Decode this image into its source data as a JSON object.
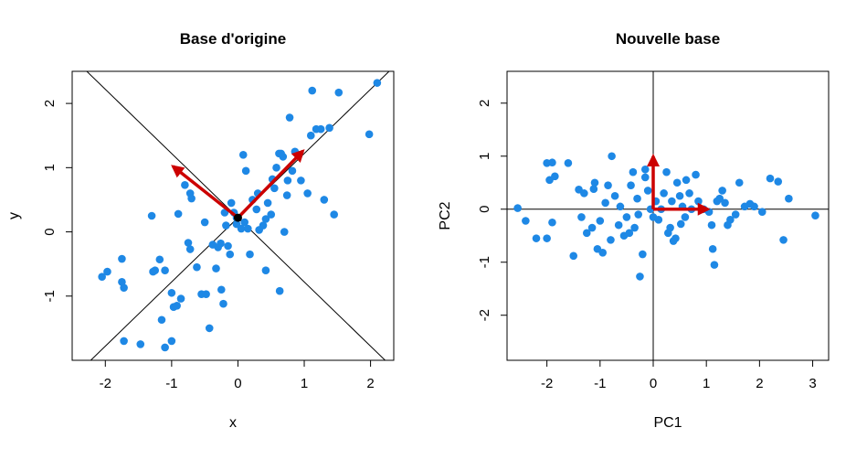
{
  "chart_data": [
    {
      "type": "scatter",
      "title": "Base d'origine",
      "xlabel": "x",
      "ylabel": "y",
      "xlim": [
        -2.5,
        2.35
      ],
      "ylim": [
        -2.0,
        2.5
      ],
      "xticks": [
        "-2",
        "-1",
        "0",
        "1",
        "2"
      ],
      "yticks": [
        "-1",
        "0",
        "1",
        "2"
      ],
      "xtick_values": [
        -2,
        -1,
        0,
        1,
        2
      ],
      "ytick_values": [
        -1,
        0,
        1,
        2
      ],
      "point_color": "#1E88E5",
      "arrow_color": "#CC0000",
      "origin_point": [
        0.0,
        0.22
      ],
      "lines": [
        {
          "slope": 1.0,
          "intercept": 0.22
        },
        {
          "slope": -1.0,
          "intercept": 0.22
        }
      ],
      "arrows": [
        {
          "from": [
            0.0,
            0.22
          ],
          "to": [
            -0.98,
            1.02
          ]
        },
        {
          "from": [
            0.0,
            0.22
          ],
          "to": [
            0.98,
            1.26
          ]
        }
      ],
      "points": [
        [
          -2.05,
          -0.7
        ],
        [
          -1.97,
          -0.62
        ],
        [
          -1.75,
          -0.42
        ],
        [
          -1.75,
          -0.78
        ],
        [
          -1.72,
          -0.87
        ],
        [
          -1.72,
          -1.7
        ],
        [
          -1.47,
          -1.75
        ],
        [
          -1.3,
          0.25
        ],
        [
          -1.28,
          -0.62
        ],
        [
          -1.25,
          -0.6
        ],
        [
          -1.18,
          -0.43
        ],
        [
          -1.1,
          -0.6
        ],
        [
          -1.15,
          -1.37
        ],
        [
          -1.1,
          -1.8
        ],
        [
          -1.0,
          -1.7
        ],
        [
          -0.97,
          -1.17
        ],
        [
          -1.0,
          -0.95
        ],
        [
          -0.92,
          -1.15
        ],
        [
          -0.86,
          -1.04
        ],
        [
          -0.9,
          0.28
        ],
        [
          -0.8,
          0.73
        ],
        [
          -0.72,
          0.6
        ],
        [
          -0.7,
          0.52
        ],
        [
          -0.75,
          -0.17
        ],
        [
          -0.72,
          -0.27
        ],
        [
          -0.62,
          -0.55
        ],
        [
          -0.55,
          -0.97
        ],
        [
          -0.48,
          -0.97
        ],
        [
          -0.43,
          -1.5
        ],
        [
          -0.38,
          -0.2
        ],
        [
          -0.33,
          -0.57
        ],
        [
          -0.3,
          -0.24
        ],
        [
          -0.26,
          -0.18
        ],
        [
          -0.25,
          -0.9
        ],
        [
          -0.22,
          -1.12
        ],
        [
          -0.18,
          0.1
        ],
        [
          -0.15,
          -0.22
        ],
        [
          -0.12,
          -0.35
        ],
        [
          -0.1,
          0.45
        ],
        [
          -0.06,
          0.3
        ],
        [
          -0.02,
          0.12
        ],
        [
          0.05,
          0.05
        ],
        [
          0.1,
          0.15
        ],
        [
          0.12,
          0.95
        ],
        [
          0.08,
          1.2
        ],
        [
          0.18,
          -0.35
        ],
        [
          0.22,
          0.5
        ],
        [
          0.28,
          0.35
        ],
        [
          0.32,
          0.03
        ],
        [
          0.38,
          0.1
        ],
        [
          0.42,
          0.2
        ],
        [
          0.45,
          0.45
        ],
        [
          0.5,
          0.27
        ],
        [
          0.52,
          0.82
        ],
        [
          0.55,
          0.68
        ],
        [
          0.58,
          1.0
        ],
        [
          0.62,
          1.22
        ],
        [
          0.65,
          1.22
        ],
        [
          0.68,
          1.17
        ],
        [
          0.7,
          0.0
        ],
        [
          0.74,
          0.57
        ],
        [
          0.75,
          0.8
        ],
        [
          0.78,
          1.78
        ],
        [
          0.82,
          0.95
        ],
        [
          0.86,
          1.25
        ],
        [
          0.92,
          1.2
        ],
        [
          0.95,
          0.8
        ],
        [
          1.05,
          0.6
        ],
        [
          1.1,
          1.5
        ],
        [
          1.12,
          2.2
        ],
        [
          1.18,
          1.6
        ],
        [
          1.25,
          1.6
        ],
        [
          1.3,
          0.5
        ],
        [
          1.38,
          1.62
        ],
        [
          1.45,
          0.27
        ],
        [
          1.52,
          2.17
        ],
        [
          1.98,
          1.52
        ],
        [
          2.1,
          2.32
        ],
        [
          0.63,
          -0.92
        ],
        [
          0.42,
          -0.6
        ],
        [
          -0.02,
          0.22
        ],
        [
          0.15,
          0.05
        ],
        [
          -0.2,
          0.3
        ],
        [
          0.3,
          0.6
        ],
        [
          -0.5,
          0.15
        ]
      ]
    },
    {
      "type": "scatter",
      "title": "Nouvelle base",
      "xlabel": "PC1",
      "ylabel": "PC2",
      "xlim": [
        -2.75,
        3.3
      ],
      "ylim": [
        -2.85,
        2.6
      ],
      "xticks": [
        "-2",
        "-1",
        "0",
        "1",
        "2",
        "3"
      ],
      "yticks": [
        "-2",
        "-1",
        "0",
        "1",
        "2"
      ],
      "xtick_values": [
        -2,
        -1,
        0,
        1,
        2,
        3
      ],
      "ytick_values": [
        -2,
        -1,
        0,
        1,
        2
      ],
      "point_color": "#1E88E5",
      "arrow_color": "#CC0000",
      "lines": [
        {
          "vertical": 0
        },
        {
          "horizontal": 0
        }
      ],
      "arrows": [
        {
          "from": [
            0,
            0
          ],
          "to": [
            0,
            1.0
          ]
        },
        {
          "from": [
            0,
            0
          ],
          "to": [
            1.03,
            0
          ]
        }
      ],
      "points": [
        [
          -2.55,
          0.02
        ],
        [
          -2.4,
          -0.22
        ],
        [
          -2.2,
          -0.55
        ],
        [
          -2.0,
          -0.55
        ],
        [
          -2.0,
          0.87
        ],
        [
          -1.9,
          0.88
        ],
        [
          -1.85,
          0.62
        ],
        [
          -1.95,
          0.55
        ],
        [
          -1.9,
          -0.25
        ],
        [
          -1.6,
          0.87
        ],
        [
          -1.5,
          -0.88
        ],
        [
          -1.4,
          0.37
        ],
        [
          -1.35,
          -0.15
        ],
        [
          -1.3,
          0.3
        ],
        [
          -1.25,
          -0.45
        ],
        [
          -1.15,
          -0.35
        ],
        [
          -1.12,
          0.38
        ],
        [
          -1.1,
          0.5
        ],
        [
          -1.05,
          -0.75
        ],
        [
          -1.0,
          -0.22
        ],
        [
          -0.95,
          -0.82
        ],
        [
          -0.9,
          0.12
        ],
        [
          -0.85,
          0.45
        ],
        [
          -0.8,
          -0.58
        ],
        [
          -0.78,
          1.0
        ],
        [
          -0.72,
          0.25
        ],
        [
          -0.65,
          -0.3
        ],
        [
          -0.62,
          0.05
        ],
        [
          -0.55,
          -0.5
        ],
        [
          -0.5,
          -0.15
        ],
        [
          -0.45,
          -0.45
        ],
        [
          -0.42,
          0.45
        ],
        [
          -0.38,
          0.7
        ],
        [
          -0.35,
          -0.35
        ],
        [
          -0.3,
          0.2
        ],
        [
          -0.28,
          -0.1
        ],
        [
          -0.25,
          -1.27
        ],
        [
          -0.2,
          -0.85
        ],
        [
          -0.15,
          0.75
        ],
        [
          -0.1,
          0.35
        ],
        [
          -0.05,
          0.0
        ],
        [
          0.0,
          -0.15
        ],
        [
          0.05,
          0.15
        ],
        [
          0.1,
          -0.2
        ],
        [
          0.15,
          0.0
        ],
        [
          0.2,
          0.3
        ],
        [
          0.25,
          0.7
        ],
        [
          0.28,
          -0.45
        ],
        [
          0.32,
          -0.35
        ],
        [
          0.35,
          0.15
        ],
        [
          0.38,
          -0.6
        ],
        [
          0.42,
          -0.55
        ],
        [
          0.45,
          0.5
        ],
        [
          0.5,
          0.25
        ],
        [
          0.52,
          -0.28
        ],
        [
          0.55,
          0.05
        ],
        [
          0.62,
          0.55
        ],
        [
          0.68,
          0.3
        ],
        [
          0.72,
          0.0
        ],
        [
          0.8,
          0.65
        ],
        [
          0.85,
          0.15
        ],
        [
          0.95,
          0.0
        ],
        [
          1.05,
          -0.05
        ],
        [
          1.1,
          -0.3
        ],
        [
          1.12,
          -0.75
        ],
        [
          1.15,
          -1.05
        ],
        [
          1.2,
          0.15
        ],
        [
          1.25,
          0.2
        ],
        [
          1.3,
          0.35
        ],
        [
          1.35,
          0.12
        ],
        [
          1.4,
          -0.3
        ],
        [
          1.45,
          -0.2
        ],
        [
          1.55,
          -0.1
        ],
        [
          1.62,
          0.5
        ],
        [
          1.72,
          0.05
        ],
        [
          1.82,
          0.1
        ],
        [
          1.9,
          0.05
        ],
        [
          2.05,
          -0.05
        ],
        [
          2.2,
          0.58
        ],
        [
          2.35,
          0.52
        ],
        [
          2.45,
          -0.58
        ],
        [
          2.55,
          0.2
        ],
        [
          3.05,
          -0.12
        ],
        [
          -0.15,
          0.6
        ],
        [
          0.6,
          -0.15
        ]
      ]
    }
  ]
}
